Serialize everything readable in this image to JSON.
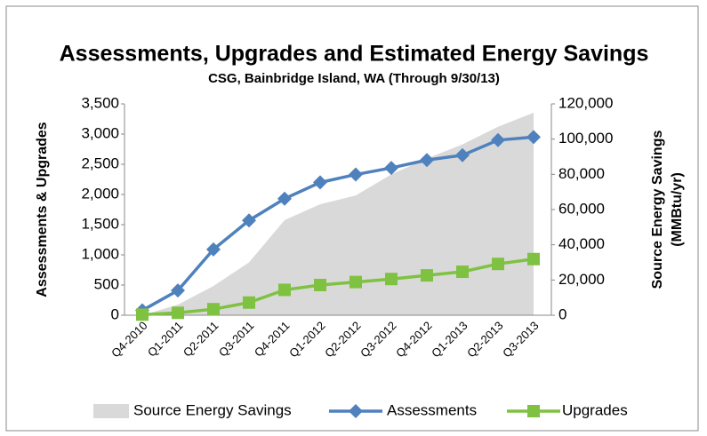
{
  "chart_data": {
    "type": "line",
    "title": "Assessments, Upgrades and Estimated Energy Savings",
    "subtitle": "CSG, Bainbridge Island, WA (Through 9/30/13)",
    "y_label": "Assessments & Upgrades",
    "y2_label": [
      "Source Energy Savings",
      "(MMBtu/yr)"
    ],
    "categories": [
      "Q4-2010",
      "Q1-2011",
      "Q2-2011",
      "Q3-2011",
      "Q4-2011",
      "Q1-2012",
      "Q2-2012",
      "Q3-2012",
      "Q4-2012",
      "Q1-2013",
      "Q2-2013",
      "Q3-2013"
    ],
    "series": [
      {
        "name": "Source Energy Savings",
        "type": "area",
        "axis": "y2",
        "color": "#d9d9d9",
        "values": [
          0,
          6000,
          16600,
          30000,
          54000,
          63000,
          68000,
          80000,
          89000,
          97000,
          107000,
          115000
        ]
      },
      {
        "name": "Assessments",
        "type": "line",
        "marker": "diamond",
        "color": "#4f81bd",
        "values": [
          80,
          410,
          1090,
          1570,
          1930,
          2200,
          2330,
          2440,
          2570,
          2650,
          2900,
          2950
        ]
      },
      {
        "name": "Upgrades",
        "type": "line",
        "marker": "square",
        "color": "#7fc241",
        "values": [
          10,
          40,
          100,
          210,
          420,
          500,
          550,
          600,
          660,
          720,
          850,
          930
        ]
      }
    ],
    "ylim": [
      0,
      3500
    ],
    "yticks": [
      0,
      500,
      {
        "value": 1000,
        "label": "1,000"
      },
      {
        "value": 1500,
        "label": "1,500"
      },
      {
        "value": 2000,
        "label": "2,000"
      },
      {
        "value": 2500,
        "label": "2,500"
      },
      {
        "value": 3000,
        "label": "3,000"
      },
      {
        "value": 3500,
        "label": "3,500"
      }
    ],
    "y2lim": [
      0,
      120000
    ],
    "y2ticks": [
      0,
      {
        "value": 20000,
        "label": "20,000"
      },
      {
        "value": 40000,
        "label": "40,000"
      },
      {
        "value": 60000,
        "label": "60,000"
      },
      {
        "value": 80000,
        "label": "80,000"
      },
      {
        "value": 100000,
        "label": "100,000"
      },
      {
        "value": 120000,
        "label": "120,000"
      }
    ],
    "legend": "bottom"
  }
}
